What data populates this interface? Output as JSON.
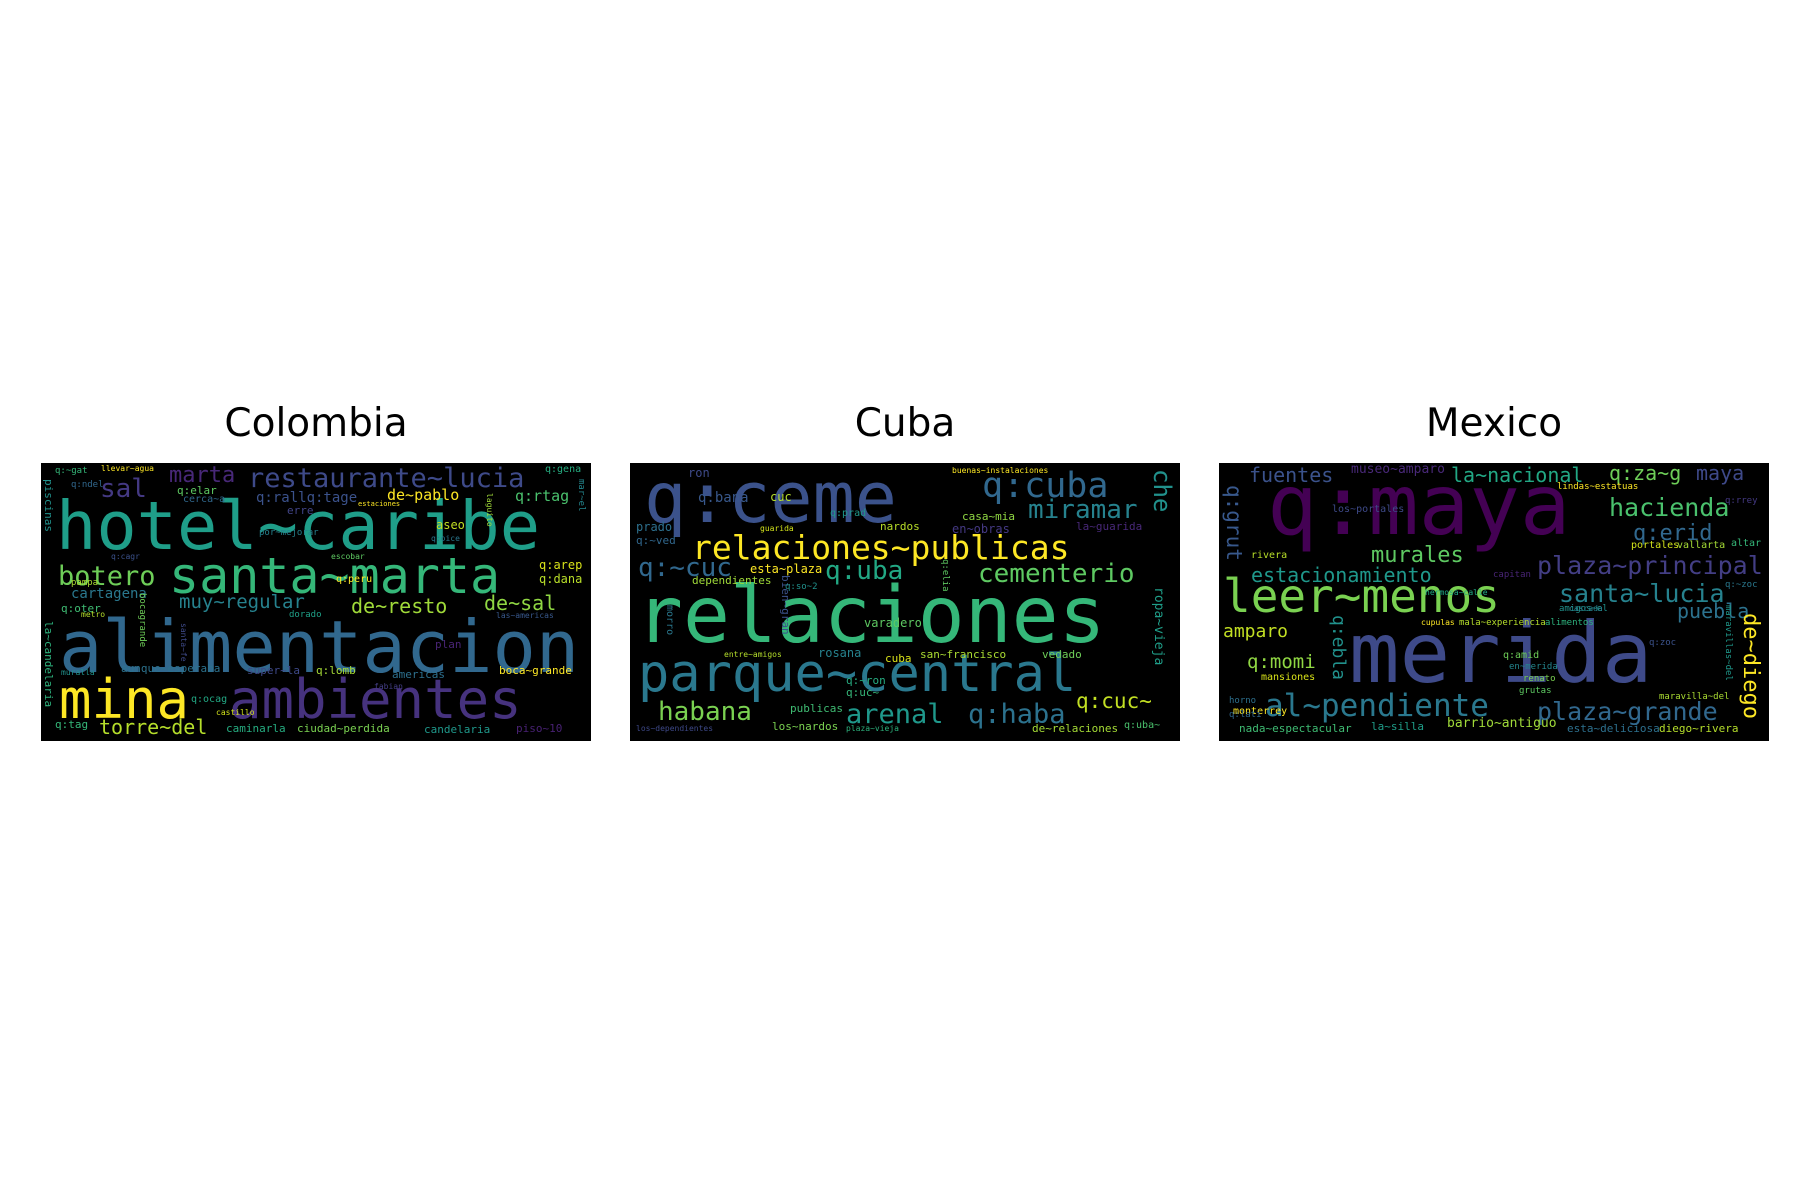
{
  "figure": {
    "panels": [
      {
        "title": "Colombia",
        "words": [
          {
            "text": "hotel~caribe",
            "color": "#1f9e89"
          },
          {
            "text": "alimentacion",
            "color": "#31688e"
          },
          {
            "text": "santa~marta",
            "color": "#35b779"
          },
          {
            "text": "ambientes",
            "color": "#46327e"
          },
          {
            "text": "mina",
            "color": "#fde725"
          },
          {
            "text": "restaurante~lucia",
            "color": "#3e4a89"
          },
          {
            "text": "botero",
            "color": "#6ece58"
          },
          {
            "text": "torre~del",
            "color": "#b5de2b"
          },
          {
            "text": "sal",
            "color": "#443983"
          },
          {
            "text": "marta",
            "color": "#482878"
          },
          {
            "text": "muy~regular",
            "color": "#26828e"
          },
          {
            "text": "de~resto",
            "color": "#a0da39"
          },
          {
            "text": "de~sal",
            "color": "#90d743"
          },
          {
            "text": "de~pablo",
            "color": "#fde725"
          },
          {
            "text": "cartagena",
            "color": "#2a788e"
          },
          {
            "text": "q:rtag",
            "color": "#4ac16d"
          },
          {
            "text": "q:rallq:tage",
            "color": "#3b528b"
          },
          {
            "text": "q:arep",
            "color": "#d8e219"
          },
          {
            "text": "q:dana",
            "color": "#b8de29"
          },
          {
            "text": "aseo",
            "color": "#c2df23"
          },
          {
            "text": "erre",
            "color": "#414487"
          },
          {
            "text": "q:elar",
            "color": "#5ec962"
          },
          {
            "text": "cerca~a",
            "color": "#31688e"
          },
          {
            "text": "q:oter",
            "color": "#3fbc73"
          },
          {
            "text": "aunque~esperaba",
            "color": "#2c728e"
          },
          {
            "text": "super~la",
            "color": "#3e4989"
          },
          {
            "text": "q:lomb",
            "color": "#a5db36"
          },
          {
            "text": "boca~grande",
            "color": "#fde725"
          },
          {
            "text": "americas",
            "color": "#2d708e"
          },
          {
            "text": "caminarla",
            "color": "#26ad81"
          },
          {
            "text": "ciudad~perdida",
            "color": "#7ad151"
          },
          {
            "text": "candelaria",
            "color": "#1f988b"
          },
          {
            "text": "piso~10",
            "color": "#482173"
          },
          {
            "text": "q:tag",
            "color": "#35b779"
          },
          {
            "text": "q:ocag",
            "color": "#22a884"
          },
          {
            "text": "la~candelaria",
            "color": "#2db27d"
          },
          {
            "text": "piscinas",
            "color": "#21918c"
          },
          {
            "text": "llevar~agua",
            "color": "#fde725"
          },
          {
            "text": "q:~gat",
            "color": "#35b779"
          },
          {
            "text": "q:gena",
            "color": "#26ad81"
          },
          {
            "text": "q:ndel",
            "color": "#31688e"
          },
          {
            "text": "pampa",
            "color": "#aadc32"
          },
          {
            "text": "bocagrande",
            "color": "#6ece58"
          },
          {
            "text": "q:cagr",
            "color": "#3b528b"
          },
          {
            "text": "metro",
            "color": "#b5de2b"
          },
          {
            "text": "dorado",
            "color": "#1fa188"
          },
          {
            "text": "las~americas",
            "color": "#38588c"
          },
          {
            "text": "plan",
            "color": "#482475"
          },
          {
            "text": "castillo",
            "color": "#d2e21b"
          },
          {
            "text": "escobar",
            "color": "#5ec962"
          },
          {
            "text": "q:peru",
            "color": "#fde725"
          },
          {
            "text": "estaciones",
            "color": "#fde725"
          },
          {
            "text": "por~mejorar",
            "color": "#26828e"
          },
          {
            "text": "fabian",
            "color": "#433e85"
          },
          {
            "text": "muralla",
            "color": "#21918c"
          },
          {
            "text": "santa~fe",
            "color": "#3e4a89"
          },
          {
            "text": "laguito",
            "color": "#a0da39"
          },
          {
            "text": "q:oice",
            "color": "#2a788e"
          },
          {
            "text": "mar~el",
            "color": "#24868e"
          }
        ]
      },
      {
        "title": "Cuba",
        "words": [
          {
            "text": "relaciones",
            "color": "#35b779"
          },
          {
            "text": "q:ceme",
            "color": "#3b528b"
          },
          {
            "text": "parque~central",
            "color": "#2a788e"
          },
          {
            "text": "relaciones~publicas",
            "color": "#fde725"
          },
          {
            "text": "q:cuba",
            "color": "#31688e"
          },
          {
            "text": "miramar",
            "color": "#26828e"
          },
          {
            "text": "cementerio",
            "color": "#5ec962"
          },
          {
            "text": "q:uba",
            "color": "#22a884"
          },
          {
            "text": "q:~cuc",
            "color": "#31688e"
          },
          {
            "text": "habana",
            "color": "#7ad151"
          },
          {
            "text": "arenal",
            "color": "#1f988b"
          },
          {
            "text": "q:haba",
            "color": "#2c728e"
          },
          {
            "text": "q:cuc~",
            "color": "#c2df23"
          },
          {
            "text": "che",
            "color": "#21918c"
          },
          {
            "text": "ropa~vieja",
            "color": "#1f9e89"
          },
          {
            "text": "q:bana",
            "color": "#38588c"
          },
          {
            "text": "cuc",
            "color": "#b5de2b"
          },
          {
            "text": "ron",
            "color": "#3e4a89"
          },
          {
            "text": "esta~plaza",
            "color": "#fde725"
          },
          {
            "text": "dependientes",
            "color": "#a0da39"
          },
          {
            "text": "prado",
            "color": "#2d708e"
          },
          {
            "text": "q:~ved",
            "color": "#31688e"
          },
          {
            "text": "casa~mia",
            "color": "#90d743"
          },
          {
            "text": "en~obras",
            "color": "#443983"
          },
          {
            "text": "la~guarida",
            "color": "#482878"
          },
          {
            "text": "nardos",
            "color": "#b8de29"
          },
          {
            "text": "q:prad",
            "color": "#1f988b"
          },
          {
            "text": "varadero",
            "color": "#5ec962"
          },
          {
            "text": "rosana",
            "color": "#26828e"
          },
          {
            "text": "cuba",
            "color": "#d8e219"
          },
          {
            "text": "san~francisco",
            "color": "#aadc32"
          },
          {
            "text": "vedado",
            "color": "#6ece58"
          },
          {
            "text": "publicas",
            "color": "#3fbc73"
          },
          {
            "text": "los~nardos",
            "color": "#7ad151"
          },
          {
            "text": "de~relaciones",
            "color": "#a5db36"
          },
          {
            "text": "q:uba~",
            "color": "#4ac16d"
          },
          {
            "text": "los~dependientes",
            "color": "#3e4989"
          },
          {
            "text": "plaza~vieja",
            "color": "#2db27d"
          },
          {
            "text": "entre~amigos",
            "color": "#b5de2b"
          },
          {
            "text": "buenas~instalaciones",
            "color": "#fde725"
          },
          {
            "text": "q:uc~",
            "color": "#35b779"
          },
          {
            "text": "q:~ron",
            "color": "#26ad81"
          },
          {
            "text": "bien~gran",
            "color": "#3b528b"
          },
          {
            "text": "morro",
            "color": "#2a788e"
          },
          {
            "text": "q:elia",
            "color": "#5ec962"
          },
          {
            "text": "guarida",
            "color": "#d2e21b"
          },
          {
            "text": "q:so~2",
            "color": "#21918c"
          }
        ]
      },
      {
        "title": "Mexico",
        "words": [
          {
            "text": "merida",
            "color": "#3e4a89"
          },
          {
            "text": "q:maya",
            "color": "#440154"
          },
          {
            "text": "leer~menos",
            "color": "#7ad151"
          },
          {
            "text": "al~pendiente",
            "color": "#2a788e"
          },
          {
            "text": "plaza~grande",
            "color": "#31688e"
          },
          {
            "text": "santa~lucia",
            "color": "#26828e"
          },
          {
            "text": "plaza~principal",
            "color": "#433e85"
          },
          {
            "text": "estacionamiento",
            "color": "#1f988b"
          },
          {
            "text": "hacienda",
            "color": "#4ac16d"
          },
          {
            "text": "murales",
            "color": "#5ec962"
          },
          {
            "text": "fuentes",
            "color": "#3b528b"
          },
          {
            "text": "la~nacional",
            "color": "#22a884"
          },
          {
            "text": "q:za~g",
            "color": "#6ece58"
          },
          {
            "text": "maya",
            "color": "#3e4989"
          },
          {
            "text": "q:erid",
            "color": "#31688e"
          },
          {
            "text": "q:grut",
            "color": "#38588c"
          },
          {
            "text": "amparo",
            "color": "#c2df23"
          },
          {
            "text": "q:momi",
            "color": "#90d743"
          },
          {
            "text": "q:ebla",
            "color": "#21918c"
          },
          {
            "text": "puebla",
            "color": "#2c728e"
          },
          {
            "text": "de~diego",
            "color": "#fde725"
          },
          {
            "text": "museo~amparo",
            "color": "#482878"
          },
          {
            "text": "barrio~antiguo",
            "color": "#a0da39"
          },
          {
            "text": "la~silla",
            "color": "#1f9e89"
          },
          {
            "text": "nada~espectacular",
            "color": "#3fbc73"
          },
          {
            "text": "esta~deliciosa",
            "color": "#2d708e"
          },
          {
            "text": "diego~rivera",
            "color": "#b5de2b"
          },
          {
            "text": "maravilla~del",
            "color": "#aadc32"
          },
          {
            "text": "monterrey",
            "color": "#fde725"
          },
          {
            "text": "mansiones",
            "color": "#d8e219"
          },
          {
            "text": "rivera",
            "color": "#b8de29"
          },
          {
            "text": "los~portales",
            "color": "#3e4a89"
          },
          {
            "text": "lindas~estatuas",
            "color": "#fde725"
          },
          {
            "text": "vallarta",
            "color": "#a5db36"
          },
          {
            "text": "altar",
            "color": "#35b779"
          },
          {
            "text": "portales",
            "color": "#d2e21b"
          },
          {
            "text": "cupulas",
            "color": "#fde725"
          },
          {
            "text": "mala~experiencia",
            "color": "#b5de2b"
          },
          {
            "text": "alimentos",
            "color": "#2db27d"
          },
          {
            "text": "q:amid",
            "color": "#6ece58"
          },
          {
            "text": "en~merida",
            "color": "#24868e"
          },
          {
            "text": "renato",
            "color": "#7ad151"
          },
          {
            "text": "grutas",
            "color": "#5ec962"
          },
          {
            "text": "amigos~el",
            "color": "#21918c"
          },
          {
            "text": "maravillas~del",
            "color": "#1f988b"
          },
          {
            "text": "q:rrey",
            "color": "#443983"
          },
          {
            "text": "q:~zoc",
            "color": "#2a788e"
          },
          {
            "text": "q:zoc",
            "color": "#3b528b"
          },
          {
            "text": "hermosa~calle",
            "color": "#22a884"
          },
          {
            "text": "cascada",
            "color": "#26828e"
          },
          {
            "text": "q:lati",
            "color": "#31688e"
          },
          {
            "text": "capitan",
            "color": "#482475"
          },
          {
            "text": "horno",
            "color": "#2d708e"
          }
        ]
      }
    ]
  }
}
